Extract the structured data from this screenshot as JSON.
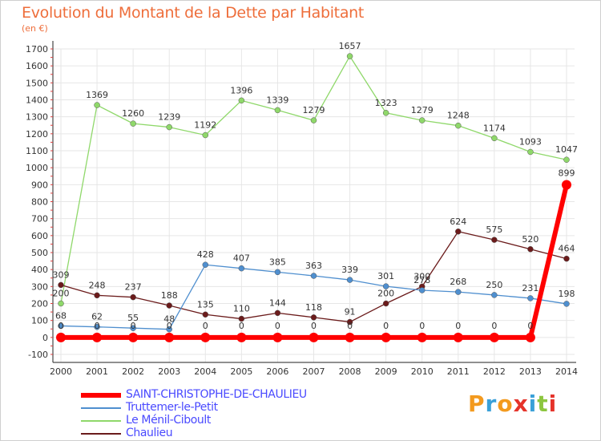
{
  "header": {
    "title": "Evolution du Montant de la Dette par Habitant",
    "unit": "(en €)"
  },
  "logo": {
    "text": "Proxiti",
    "colors": [
      "#f39a1e",
      "#3aa0d8",
      "#f39a1e",
      "#e5332a",
      "#3aa0d8",
      "#8cc63f",
      "#e5332a"
    ]
  },
  "chart_data": {
    "type": "line",
    "title": "Evolution du Montant de la Dette par Habitant",
    "ylabel": "(en €)",
    "xlabel": "",
    "x": [
      2000,
      2001,
      2002,
      2003,
      2004,
      2005,
      2006,
      2007,
      2008,
      2009,
      2010,
      2011,
      2012,
      2013,
      2014
    ],
    "ylim": [
      -100,
      1700
    ],
    "yticks": [
      -100,
      0,
      100,
      200,
      300,
      400,
      500,
      600,
      700,
      800,
      900,
      1000,
      1100,
      1200,
      1300,
      1400,
      1500,
      1600,
      1700
    ],
    "grid": true,
    "legend_position": "bottom-left",
    "series": [
      {
        "name": "SAINT-CHRISTOPHE-DE-CHAULIEU",
        "color": "#ff0000",
        "values": [
          0,
          0,
          0,
          0,
          0,
          0,
          0,
          0,
          0,
          0,
          0,
          0,
          0,
          0,
          899
        ]
      },
      {
        "name": "Truttemer-le-Petit",
        "color": "#4f8fcf",
        "values": [
          68,
          62,
          55,
          48,
          428,
          407,
          385,
          363,
          339,
          301,
          278,
          268,
          250,
          231,
          198
        ]
      },
      {
        "name": "Le Ménil-Ciboult",
        "color": "#8fd86a",
        "values": [
          200,
          1369,
          1260,
          1239,
          1192,
          1396,
          1339,
          1279,
          1657,
          1323,
          1279,
          1248,
          1174,
          1093,
          1047
        ]
      },
      {
        "name": "Chaulieu",
        "color": "#6b1b1b",
        "values": [
          309,
          248,
          237,
          188,
          135,
          110,
          144,
          118,
          91,
          200,
          300,
          624,
          575,
          520,
          464
        ]
      }
    ]
  }
}
